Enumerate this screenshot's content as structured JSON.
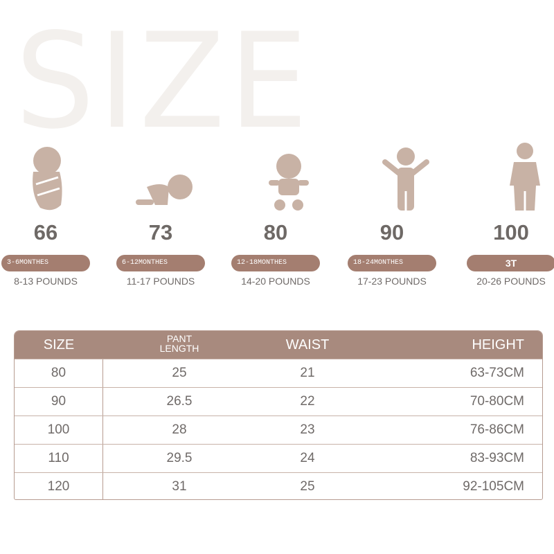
{
  "title": "SIZE",
  "colors": {
    "accent": "#a47e70",
    "header": "#a88a7e",
    "icon": "#c8b2a5",
    "title": "#f3f0ed"
  },
  "sizes": [
    {
      "icon": "swaddled-baby-icon",
      "size": "66",
      "age": "3-6MONTHES",
      "weight": "8-13 POUNDS"
    },
    {
      "icon": "crawling-baby-icon",
      "size": "73",
      "age": "6-12MONTHES",
      "weight": "11-17 POUNDS"
    },
    {
      "icon": "sitting-baby-icon",
      "size": "80",
      "age": "12-18MONTHES",
      "weight": "14-20 POUNDS"
    },
    {
      "icon": "standing-toddler-icon",
      "size": "90",
      "age": "18-24MONTHES",
      "weight": "17-23 POUNDS"
    },
    {
      "icon": "child-suit-icon",
      "size": "100",
      "age": "3T",
      "weight": "20-26 POUNDS"
    }
  ],
  "table": {
    "headers": {
      "size": "SIZE",
      "pant1": "PANT",
      "pant2": "LENGTH",
      "waist": "WAIST",
      "height": "HEIGHT"
    },
    "rows": [
      [
        "80",
        "25",
        "21",
        "63-73CM"
      ],
      [
        "90",
        "26.5",
        "22",
        "70-80CM"
      ],
      [
        "100",
        "28",
        "23",
        "76-86CM"
      ],
      [
        "110",
        "29.5",
        "24",
        "83-93CM"
      ],
      [
        "120",
        "31",
        "25",
        "92-105CM"
      ]
    ]
  }
}
